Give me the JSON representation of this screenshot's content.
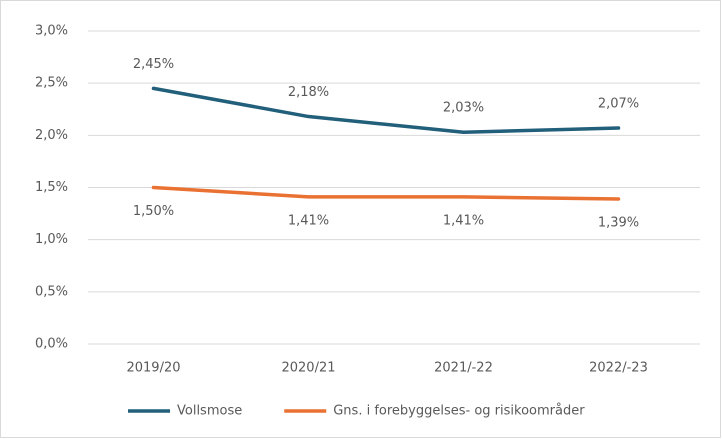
{
  "chart_data": {
    "type": "line",
    "categories": [
      "2019/20",
      "2020/21",
      "2021/-22",
      "2022/-23"
    ],
    "series": [
      {
        "name": "Vollsmose",
        "color": "#215f7a",
        "values": [
          2.45,
          2.18,
          2.03,
          2.07
        ],
        "value_labels": [
          "2,45%",
          "2,18%",
          "2,03%",
          "2,07%"
        ]
      },
      {
        "name": "Gns. i forebyggelses- og risikoområder",
        "color": "#e97132",
        "values": [
          1.5,
          1.41,
          1.41,
          1.39
        ],
        "value_labels": [
          "1,50%",
          "1,41%",
          "1,41%",
          "1,39%"
        ]
      }
    ],
    "ylim": [
      0,
      3
    ],
    "yticks": [
      {
        "value": 0,
        "label": "0,0%"
      },
      {
        "value": 0.5,
        "label": "0,5%"
      },
      {
        "value": 1,
        "label": "1,0%"
      },
      {
        "value": 1.5,
        "label": "1,5%"
      },
      {
        "value": 2,
        "label": "2,0%"
      },
      {
        "value": 2.5,
        "label": "2,5%"
      },
      {
        "value": 3,
        "label": "3,0%"
      }
    ],
    "grid": true,
    "legend": "bottom"
  }
}
